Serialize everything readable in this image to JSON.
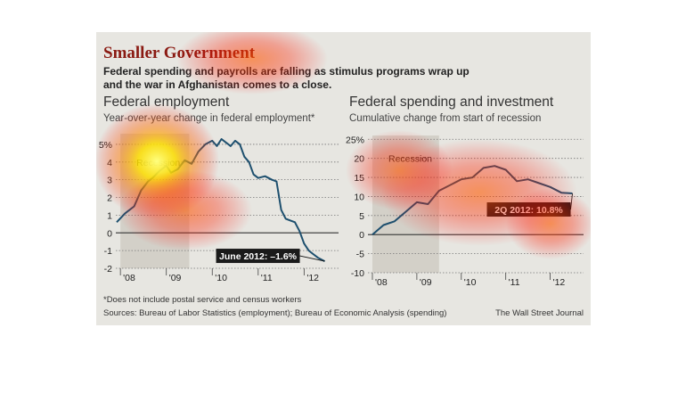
{
  "figure": {
    "title": "Smaller Government",
    "subtitle_lines": [
      "Federal spending and payrolls are falling as stimulus programs wrap up",
      "and the war in Afghanistan comes to a close."
    ],
    "footnote": "*Does not include postal service and census workers",
    "sources": "Sources: Bureau of Labor Statistics (employment); Bureau of Economic Analysis (spending)",
    "credit": "The Wall Street Journal",
    "colors": {
      "line": "#1d4f6e",
      "title": "#8a1a12",
      "recession": "#d3d0c8",
      "callout_bg": "#1a1a1a",
      "callout_text": "#ffffff"
    }
  },
  "chart_data": [
    {
      "type": "line",
      "title": "Federal employment",
      "subtitle": "Year-over-year change in federal employment*",
      "recession_label": "Recession",
      "recession": [
        2008.0,
        2009.5
      ],
      "xlim": [
        2007.9,
        2012.75
      ],
      "ylim": [
        -2,
        5.6
      ],
      "yticks": [
        -2,
        -1,
        0,
        1,
        2,
        3,
        4,
        5
      ],
      "ytick_labels": [
        "-2",
        "-1",
        "0",
        "1",
        "2",
        "3",
        "4",
        "5%"
      ],
      "xticks": [
        2008,
        2009,
        2010,
        2011,
        2012
      ],
      "xtick_labels": [
        "'08",
        "'09",
        "'10",
        "'11",
        "'12"
      ],
      "callout": "June 2012: –1.6%",
      "x": [
        2007.92,
        2008.1,
        2008.3,
        2008.45,
        2008.6,
        2008.7,
        2008.85,
        2009.0,
        2009.1,
        2009.25,
        2009.4,
        2009.55,
        2009.7,
        2009.85,
        2010.0,
        2010.1,
        2010.2,
        2010.3,
        2010.4,
        2010.5,
        2010.6,
        2010.7,
        2010.8,
        2010.9,
        2011.0,
        2011.15,
        2011.3,
        2011.4,
        2011.5,
        2011.6,
        2011.7,
        2011.8,
        2011.9,
        2012.0,
        2012.1,
        2012.2,
        2012.3,
        2012.45
      ],
      "values": [
        0.6,
        1.1,
        1.5,
        2.4,
        2.9,
        3.1,
        3.5,
        3.8,
        3.4,
        3.6,
        4.1,
        3.9,
        4.6,
        5.0,
        5.2,
        4.9,
        5.3,
        5.1,
        4.9,
        5.2,
        5.0,
        4.3,
        4.0,
        3.3,
        3.1,
        3.2,
        3.0,
        2.9,
        1.3,
        0.8,
        0.7,
        0.6,
        0.1,
        -0.6,
        -1.0,
        -1.2,
        -1.4,
        -1.6
      ]
    },
    {
      "type": "line",
      "title": "Federal spending and investment",
      "subtitle": "Cumulative change from start of recession",
      "recession_label": "Recession",
      "recession": [
        2008.0,
        2009.5
      ],
      "xlim": [
        2007.9,
        2012.75
      ],
      "ylim": [
        -10,
        26
      ],
      "yticks": [
        -10,
        -5,
        0,
        5,
        10,
        15,
        20,
        25
      ],
      "ytick_labels": [
        "-10",
        "-5",
        "0",
        "5",
        "10",
        "15",
        "20",
        "25%"
      ],
      "xticks": [
        2008,
        2009,
        2010,
        2011,
        2012
      ],
      "xtick_labels": [
        "'08",
        "'09",
        "'10",
        "'11",
        "'12"
      ],
      "callout": "2Q 2012: 10.8%",
      "x": [
        2008.0,
        2008.25,
        2008.5,
        2008.75,
        2009.0,
        2009.25,
        2009.5,
        2009.75,
        2010.0,
        2010.25,
        2010.5,
        2010.75,
        2011.0,
        2011.25,
        2011.5,
        2011.75,
        2012.0,
        2012.25,
        2012.5
      ],
      "values": [
        0.0,
        2.5,
        3.5,
        6.0,
        8.5,
        8.0,
        11.5,
        13.0,
        14.5,
        15.0,
        17.5,
        18.0,
        17.0,
        14.0,
        14.5,
        13.5,
        12.5,
        11.0,
        10.8
      ]
    }
  ]
}
